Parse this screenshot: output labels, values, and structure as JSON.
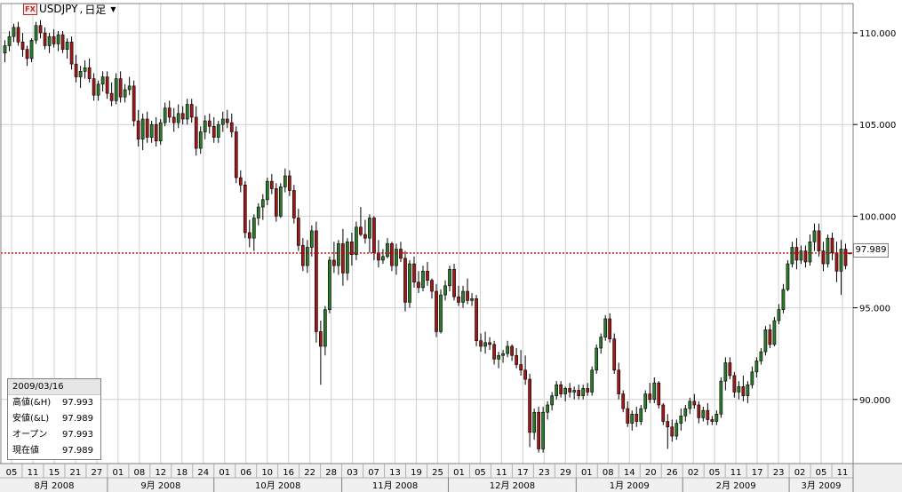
{
  "header": {
    "fx_badge": "FX",
    "symbol": "USDJPY",
    "timeframe": "日足"
  },
  "current_price": {
    "value": 97.989,
    "label": "97.989"
  },
  "info_panel": {
    "date": "2009/03/16",
    "rows": [
      {
        "label": "高値(&H)",
        "value": "97.993"
      },
      {
        "label": "安値(&L)",
        "value": "97.989"
      },
      {
        "label": "オープン",
        "value": "97.993"
      },
      {
        "label": "現在値",
        "value": "97.989"
      }
    ]
  },
  "colors": {
    "up": "#2a7a2a",
    "down": "#a01818",
    "price_line": "#cc0000",
    "grid": "#d0d0d0"
  },
  "chart_data": {
    "type": "candlestick",
    "symbol": "USDJPY",
    "timeframe": "日足",
    "ylim": [
      86.5,
      111.6
    ],
    "y_ticks": [
      90.0,
      95.0,
      100.0,
      105.0,
      110.0
    ],
    "y_tick_labels": [
      "90.000",
      "95.000",
      "100.000",
      "105.000",
      "110.000"
    ],
    "day_labels": [
      "05",
      "11",
      "15",
      "21",
      "27",
      "01",
      "08",
      "12",
      "18",
      "24",
      "01",
      "06",
      "10",
      "16",
      "22",
      "28",
      "03",
      "07",
      "13",
      "19",
      "25",
      "01",
      "05",
      "11",
      "17",
      "23",
      "29",
      "01",
      "08",
      "14",
      "20",
      "26",
      "02",
      "05",
      "11",
      "17",
      "23",
      "02",
      "05",
      "11"
    ],
    "month_labels": [
      "8月 2008",
      "9月 2008",
      "10月 2008",
      "11月 2008",
      "12月 2008",
      "1月 2009",
      "2月 2009",
      "3月 2009"
    ],
    "month_boundaries_after_day_index": [
      4,
      9,
      15,
      20,
      26,
      31,
      36
    ],
    "ohlc_columns": [
      "open",
      "high",
      "low",
      "close"
    ],
    "ohlc": [
      [
        108.9,
        109.6,
        108.4,
        109.3
      ],
      [
        109.3,
        110.1,
        109.0,
        109.8
      ],
      [
        109.8,
        110.5,
        109.5,
        110.3
      ],
      [
        110.3,
        110.6,
        109.3,
        109.5
      ],
      [
        109.5,
        110.0,
        108.7,
        109.1
      ],
      [
        109.1,
        109.3,
        108.2,
        108.6
      ],
      [
        108.6,
        109.7,
        108.4,
        109.6
      ],
      [
        109.6,
        110.6,
        109.4,
        110.4
      ],
      [
        110.4,
        110.7,
        109.7,
        110.0
      ],
      [
        110.0,
        110.3,
        109.1,
        109.3
      ],
      [
        109.3,
        110.0,
        108.9,
        109.8
      ],
      [
        109.8,
        110.2,
        109.2,
        109.4
      ],
      [
        109.4,
        110.1,
        109.0,
        109.9
      ],
      [
        109.9,
        110.1,
        108.9,
        109.1
      ],
      [
        109.1,
        109.7,
        108.6,
        109.5
      ],
      [
        109.5,
        109.8,
        108.0,
        108.3
      ],
      [
        108.3,
        108.8,
        107.3,
        107.6
      ],
      [
        107.6,
        108.2,
        107.0,
        107.9
      ],
      [
        107.9,
        108.5,
        107.5,
        108.1
      ],
      [
        108.1,
        108.6,
        107.3,
        107.5
      ],
      [
        107.5,
        107.8,
        106.3,
        106.6
      ],
      [
        106.6,
        107.4,
        106.3,
        107.2
      ],
      [
        107.2,
        107.9,
        106.8,
        107.6
      ],
      [
        107.6,
        107.9,
        106.4,
        106.7
      ],
      [
        106.7,
        107.3,
        106.0,
        106.3
      ],
      [
        106.3,
        107.8,
        106.1,
        107.5
      ],
      [
        107.5,
        107.9,
        106.2,
        106.5
      ],
      [
        106.5,
        107.2,
        106.2,
        106.9
      ],
      [
        106.9,
        107.6,
        106.6,
        107.1
      ],
      [
        107.1,
        107.4,
        104.9,
        105.2
      ],
      [
        105.2,
        105.8,
        103.8,
        104.2
      ],
      [
        104.2,
        105.6,
        103.6,
        105.3
      ],
      [
        105.3,
        105.7,
        104.0,
        104.3
      ],
      [
        104.3,
        105.2,
        104.0,
        105.0
      ],
      [
        105.0,
        105.4,
        103.8,
        104.1
      ],
      [
        104.1,
        105.3,
        103.9,
        105.1
      ],
      [
        105.1,
        106.2,
        104.9,
        105.9
      ],
      [
        105.9,
        106.3,
        105.1,
        105.4
      ],
      [
        105.4,
        105.9,
        104.6,
        105.1
      ],
      [
        105.1,
        106.1,
        104.8,
        105.6
      ],
      [
        105.6,
        106.0,
        105.0,
        105.3
      ],
      [
        105.3,
        106.4,
        105.0,
        106.1
      ],
      [
        106.1,
        106.4,
        105.1,
        105.4
      ],
      [
        105.4,
        106.0,
        103.3,
        103.7
      ],
      [
        103.7,
        104.9,
        103.4,
        104.6
      ],
      [
        104.6,
        105.5,
        104.2,
        105.2
      ],
      [
        105.2,
        105.6,
        104.5,
        104.9
      ],
      [
        104.9,
        105.4,
        104.0,
        104.3
      ],
      [
        104.3,
        105.2,
        104.0,
        105.0
      ],
      [
        105.0,
        105.7,
        104.6,
        105.3
      ],
      [
        105.3,
        105.8,
        104.8,
        105.1
      ],
      [
        105.1,
        105.6,
        104.3,
        104.6
      ],
      [
        104.6,
        104.9,
        101.8,
        102.1
      ],
      [
        102.1,
        102.5,
        101.3,
        101.7
      ],
      [
        101.7,
        101.9,
        98.8,
        99.1
      ],
      [
        99.1,
        99.8,
        98.3,
        98.8
      ],
      [
        98.8,
        100.1,
        98.1,
        99.9
      ],
      [
        99.9,
        100.7,
        99.5,
        100.5
      ],
      [
        100.5,
        101.2,
        99.8,
        100.9
      ],
      [
        100.9,
        102.1,
        100.6,
        101.9
      ],
      [
        101.9,
        102.3,
        101.2,
        101.5
      ],
      [
        101.5,
        101.8,
        99.7,
        100.0
      ],
      [
        100.0,
        101.8,
        99.9,
        101.6
      ],
      [
        101.6,
        102.6,
        101.3,
        102.2
      ],
      [
        102.2,
        102.5,
        101.1,
        101.4
      ],
      [
        101.4,
        101.7,
        99.6,
        99.9
      ],
      [
        99.9,
        100.4,
        98.1,
        98.4
      ],
      [
        98.4,
        98.8,
        97.0,
        97.3
      ],
      [
        97.3,
        98.7,
        96.9,
        98.3
      ],
      [
        98.3,
        99.5,
        97.8,
        99.2
      ],
      [
        99.2,
        99.7,
        93.1,
        93.7
      ],
      [
        93.7,
        94.3,
        90.8,
        92.9
      ],
      [
        92.9,
        95.1,
        92.4,
        94.9
      ],
      [
        94.9,
        97.8,
        94.7,
        97.6
      ],
      [
        97.6,
        98.6,
        96.9,
        97.3
      ],
      [
        97.3,
        98.7,
        96.8,
        98.5
      ],
      [
        98.5,
        99.3,
        96.2,
        96.9
      ],
      [
        96.9,
        98.8,
        96.5,
        98.6
      ],
      [
        98.6,
        99.1,
        97.3,
        97.9
      ],
      [
        97.9,
        99.7,
        97.6,
        99.4
      ],
      [
        99.4,
        100.5,
        98.9,
        99.0
      ],
      [
        99.0,
        99.8,
        98.5,
        98.8
      ],
      [
        98.8,
        100.1,
        98.0,
        99.9
      ],
      [
        99.9,
        100.0,
        97.6,
        98.0
      ],
      [
        98.0,
        98.7,
        97.2,
        97.6
      ],
      [
        97.6,
        98.2,
        97.4,
        97.8
      ],
      [
        97.8,
        98.8,
        97.7,
        98.5
      ],
      [
        98.5,
        98.6,
        97.0,
        97.3
      ],
      [
        97.3,
        98.5,
        96.8,
        98.2
      ],
      [
        98.2,
        98.6,
        97.5,
        97.7
      ],
      [
        97.7,
        98.1,
        94.8,
        95.3
      ],
      [
        95.3,
        97.6,
        95.0,
        97.4
      ],
      [
        97.4,
        97.8,
        96.1,
        96.4
      ],
      [
        96.4,
        97.0,
        95.8,
        96.1
      ],
      [
        96.1,
        97.3,
        95.9,
        97.0
      ],
      [
        97.0,
        97.5,
        96.2,
        96.5
      ],
      [
        96.5,
        96.6,
        95.5,
        95.9
      ],
      [
        95.9,
        96.3,
        93.4,
        93.7
      ],
      [
        93.7,
        96.0,
        93.6,
        95.7
      ],
      [
        95.7,
        96.5,
        95.4,
        96.2
      ],
      [
        96.2,
        97.3,
        95.9,
        97.1
      ],
      [
        97.1,
        97.4,
        95.4,
        95.6
      ],
      [
        95.6,
        96.2,
        95.1,
        95.3
      ],
      [
        95.3,
        96.2,
        95.0,
        95.9
      ],
      [
        95.9,
        96.6,
        95.2,
        95.4
      ],
      [
        95.4,
        95.8,
        95.1,
        95.5
      ],
      [
        95.5,
        95.7,
        92.9,
        93.2
      ],
      [
        93.2,
        93.6,
        92.6,
        92.9
      ],
      [
        92.9,
        93.7,
        92.5,
        93.1
      ],
      [
        93.1,
        93.4,
        92.7,
        93.0
      ],
      [
        93.0,
        93.2,
        91.9,
        92.2
      ],
      [
        92.2,
        92.6,
        91.7,
        92.4
      ],
      [
        92.4,
        92.7,
        92.0,
        92.5
      ],
      [
        92.5,
        93.2,
        92.3,
        92.9
      ],
      [
        92.9,
        93.0,
        92.1,
        92.4
      ],
      [
        92.4,
        92.8,
        91.7,
        91.9
      ],
      [
        91.9,
        92.7,
        91.3,
        91.6
      ],
      [
        91.6,
        92.4,
        90.8,
        91.1
      ],
      [
        91.1,
        91.4,
        87.4,
        88.2
      ],
      [
        88.2,
        89.5,
        87.8,
        89.3
      ],
      [
        89.3,
        89.6,
        87.1,
        87.3
      ],
      [
        87.3,
        89.6,
        87.1,
        89.3
      ],
      [
        89.3,
        89.9,
        88.9,
        89.7
      ],
      [
        89.7,
        90.4,
        89.4,
        90.2
      ],
      [
        90.2,
        91.0,
        90.0,
        90.8
      ],
      [
        90.8,
        91.0,
        90.1,
        90.3
      ],
      [
        90.3,
        90.7,
        89.9,
        90.6
      ],
      [
        90.6,
        90.9,
        90.1,
        90.4
      ],
      [
        90.4,
        90.7,
        90.0,
        90.5
      ],
      [
        90.5,
        90.8,
        90.0,
        90.2
      ],
      [
        90.2,
        90.8,
        90.0,
        90.6
      ],
      [
        90.6,
        90.9,
        90.2,
        90.4
      ],
      [
        90.4,
        91.8,
        90.2,
        91.6
      ],
      [
        91.6,
        93.0,
        91.4,
        92.8
      ],
      [
        92.8,
        93.6,
        92.5,
        93.4
      ],
      [
        93.4,
        94.6,
        93.2,
        94.4
      ],
      [
        94.4,
        94.7,
        93.1,
        93.3
      ],
      [
        93.3,
        93.6,
        91.4,
        91.6
      ],
      [
        91.6,
        92.0,
        90.0,
        90.3
      ],
      [
        90.3,
        90.5,
        89.3,
        89.5
      ],
      [
        89.5,
        89.9,
        88.5,
        88.7
      ],
      [
        88.7,
        89.4,
        88.3,
        89.2
      ],
      [
        89.2,
        89.6,
        88.5,
        88.8
      ],
      [
        88.8,
        89.7,
        88.6,
        89.5
      ],
      [
        89.5,
        90.5,
        89.3,
        90.3
      ],
      [
        90.3,
        90.9,
        89.8,
        90.0
      ],
      [
        90.0,
        91.2,
        89.8,
        90.9
      ],
      [
        90.9,
        91.0,
        89.5,
        89.7
      ],
      [
        89.7,
        89.8,
        88.6,
        88.8
      ],
      [
        88.8,
        89.2,
        87.3,
        88.5
      ],
      [
        88.5,
        88.9,
        87.7,
        88.0
      ],
      [
        88.0,
        88.9,
        87.8,
        88.7
      ],
      [
        88.7,
        89.5,
        88.3,
        89.1
      ],
      [
        89.1,
        89.7,
        88.8,
        89.5
      ],
      [
        89.5,
        90.1,
        89.2,
        89.9
      ],
      [
        89.9,
        90.3,
        89.5,
        89.7
      ],
      [
        89.7,
        89.9,
        88.7,
        89.0
      ],
      [
        89.0,
        89.6,
        88.8,
        89.4
      ],
      [
        89.4,
        89.8,
        88.6,
        88.9
      ],
      [
        88.9,
        89.1,
        88.6,
        88.8
      ],
      [
        88.8,
        89.4,
        88.6,
        89.2
      ],
      [
        89.2,
        91.2,
        89.0,
        91.0
      ],
      [
        91.0,
        92.3,
        90.5,
        92.0
      ],
      [
        92.0,
        92.3,
        91.1,
        91.3
      ],
      [
        91.3,
        91.5,
        90.1,
        90.4
      ],
      [
        90.4,
        91.0,
        90.0,
        90.7
      ],
      [
        90.7,
        91.3,
        89.9,
        90.2
      ],
      [
        90.2,
        91.0,
        89.8,
        90.8
      ],
      [
        90.8,
        91.8,
        90.6,
        91.5
      ],
      [
        91.5,
        92.3,
        91.2,
        92.1
      ],
      [
        92.1,
        92.8,
        91.9,
        92.6
      ],
      [
        92.6,
        94.0,
        92.4,
        93.8
      ],
      [
        93.8,
        94.1,
        92.8,
        93.0
      ],
      [
        93.0,
        94.5,
        92.9,
        94.3
      ],
      [
        94.3,
        95.2,
        94.1,
        94.9
      ],
      [
        94.9,
        96.3,
        94.7,
        96.0
      ],
      [
        96.0,
        97.6,
        95.9,
        97.4
      ],
      [
        97.4,
        98.6,
        97.2,
        98.3
      ],
      [
        98.3,
        98.8,
        97.1,
        97.6
      ],
      [
        97.6,
        98.4,
        97.4,
        98.1
      ],
      [
        98.1,
        98.4,
        97.2,
        97.5
      ],
      [
        97.5,
        99.0,
        97.3,
        98.6
      ],
      [
        98.6,
        99.6,
        98.1,
        99.2
      ],
      [
        99.2,
        99.6,
        97.8,
        98.1
      ],
      [
        98.1,
        98.6,
        97.0,
        97.4
      ],
      [
        97.4,
        99.0,
        97.2,
        98.8
      ],
      [
        98.8,
        99.1,
        97.6,
        98.0
      ],
      [
        98.0,
        98.6,
        96.4,
        97.0
      ],
      [
        97.0,
        98.7,
        95.7,
        98.2
      ],
      [
        98.2,
        98.5,
        97.1,
        97.3
      ],
      [
        97.993,
        97.993,
        97.989,
        97.989
      ]
    ]
  }
}
